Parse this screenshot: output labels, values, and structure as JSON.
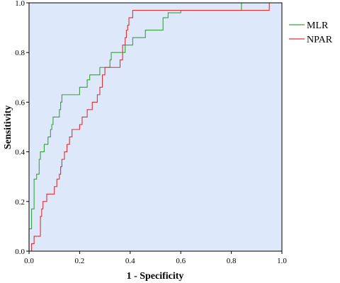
{
  "chart_data": {
    "type": "line",
    "title": "",
    "xlabel": "1 - Specificity",
    "ylabel": "Sensitivity",
    "xlim": [
      0,
      1
    ],
    "ylim": [
      0,
      1
    ],
    "x_ticks": [
      "0.0",
      "0.2",
      "0.4",
      "0.6",
      "0.8",
      "1.0"
    ],
    "y_ticks": [
      "0.0",
      "0.2",
      "0.4",
      "0.6",
      "0.8",
      "1.0"
    ],
    "grid": false,
    "legend": "right",
    "plot_background": "#dde8fa",
    "series": [
      {
        "name": "MLR",
        "color": "#3aa03a",
        "points": [
          [
            0,
            0
          ],
          [
            0,
            0.09
          ],
          [
            0.01,
            0.09
          ],
          [
            0.01,
            0.17
          ],
          [
            0.02,
            0.17
          ],
          [
            0.02,
            0.29
          ],
          [
            0.03,
            0.29
          ],
          [
            0.03,
            0.31
          ],
          [
            0.04,
            0.31
          ],
          [
            0.04,
            0.37
          ],
          [
            0.045,
            0.37
          ],
          [
            0.045,
            0.4
          ],
          [
            0.06,
            0.4
          ],
          [
            0.06,
            0.43
          ],
          [
            0.075,
            0.43
          ],
          [
            0.075,
            0.46
          ],
          [
            0.085,
            0.46
          ],
          [
            0.085,
            0.49
          ],
          [
            0.09,
            0.49
          ],
          [
            0.09,
            0.51
          ],
          [
            0.095,
            0.51
          ],
          [
            0.095,
            0.54
          ],
          [
            0.12,
            0.54
          ],
          [
            0.12,
            0.57
          ],
          [
            0.125,
            0.57
          ],
          [
            0.125,
            0.6
          ],
          [
            0.13,
            0.6
          ],
          [
            0.13,
            0.63
          ],
          [
            0.2,
            0.63
          ],
          [
            0.2,
            0.66
          ],
          [
            0.23,
            0.66
          ],
          [
            0.23,
            0.69
          ],
          [
            0.24,
            0.69
          ],
          [
            0.24,
            0.71
          ],
          [
            0.28,
            0.71
          ],
          [
            0.28,
            0.74
          ],
          [
            0.32,
            0.74
          ],
          [
            0.32,
            0.77
          ],
          [
            0.325,
            0.77
          ],
          [
            0.325,
            0.8
          ],
          [
            0.38,
            0.8
          ],
          [
            0.38,
            0.83
          ],
          [
            0.41,
            0.83
          ],
          [
            0.41,
            0.86
          ],
          [
            0.46,
            0.86
          ],
          [
            0.46,
            0.89
          ],
          [
            0.53,
            0.89
          ],
          [
            0.53,
            0.91
          ],
          [
            0.53,
            0.94
          ],
          [
            0.55,
            0.94
          ],
          [
            0.55,
            0.96
          ],
          [
            0.6,
            0.96
          ],
          [
            0.6,
            0.97
          ],
          [
            0.84,
            0.97
          ],
          [
            0.84,
            1.0
          ],
          [
            1.0,
            1.0
          ]
        ]
      },
      {
        "name": "NPAR",
        "color": "#e03030",
        "points": [
          [
            0,
            0
          ],
          [
            0.01,
            0
          ],
          [
            0.01,
            0.03
          ],
          [
            0.02,
            0.03
          ],
          [
            0.02,
            0.06
          ],
          [
            0.045,
            0.06
          ],
          [
            0.045,
            0.14
          ],
          [
            0.05,
            0.14
          ],
          [
            0.05,
            0.17
          ],
          [
            0.055,
            0.17
          ],
          [
            0.055,
            0.2
          ],
          [
            0.07,
            0.2
          ],
          [
            0.07,
            0.23
          ],
          [
            0.1,
            0.23
          ],
          [
            0.1,
            0.26
          ],
          [
            0.11,
            0.26
          ],
          [
            0.11,
            0.29
          ],
          [
            0.12,
            0.29
          ],
          [
            0.12,
            0.31
          ],
          [
            0.125,
            0.31
          ],
          [
            0.125,
            0.34
          ],
          [
            0.13,
            0.34
          ],
          [
            0.13,
            0.37
          ],
          [
            0.14,
            0.37
          ],
          [
            0.14,
            0.4
          ],
          [
            0.15,
            0.4
          ],
          [
            0.15,
            0.43
          ],
          [
            0.16,
            0.43
          ],
          [
            0.16,
            0.46
          ],
          [
            0.17,
            0.46
          ],
          [
            0.17,
            0.49
          ],
          [
            0.2,
            0.49
          ],
          [
            0.2,
            0.51
          ],
          [
            0.21,
            0.51
          ],
          [
            0.21,
            0.54
          ],
          [
            0.23,
            0.54
          ],
          [
            0.23,
            0.57
          ],
          [
            0.25,
            0.57
          ],
          [
            0.25,
            0.6
          ],
          [
            0.27,
            0.6
          ],
          [
            0.27,
            0.63
          ],
          [
            0.28,
            0.63
          ],
          [
            0.28,
            0.66
          ],
          [
            0.29,
            0.66
          ],
          [
            0.29,
            0.71
          ],
          [
            0.3,
            0.71
          ],
          [
            0.3,
            0.74
          ],
          [
            0.36,
            0.74
          ],
          [
            0.36,
            0.77
          ],
          [
            0.37,
            0.77
          ],
          [
            0.37,
            0.83
          ],
          [
            0.38,
            0.83
          ],
          [
            0.38,
            0.86
          ],
          [
            0.385,
            0.86
          ],
          [
            0.385,
            0.89
          ],
          [
            0.39,
            0.89
          ],
          [
            0.39,
            0.91
          ],
          [
            0.395,
            0.91
          ],
          [
            0.395,
            0.94
          ],
          [
            0.41,
            0.94
          ],
          [
            0.41,
            0.97
          ],
          [
            0.95,
            0.97
          ],
          [
            0.95,
            1.0
          ],
          [
            1.0,
            1.0
          ]
        ]
      }
    ]
  }
}
